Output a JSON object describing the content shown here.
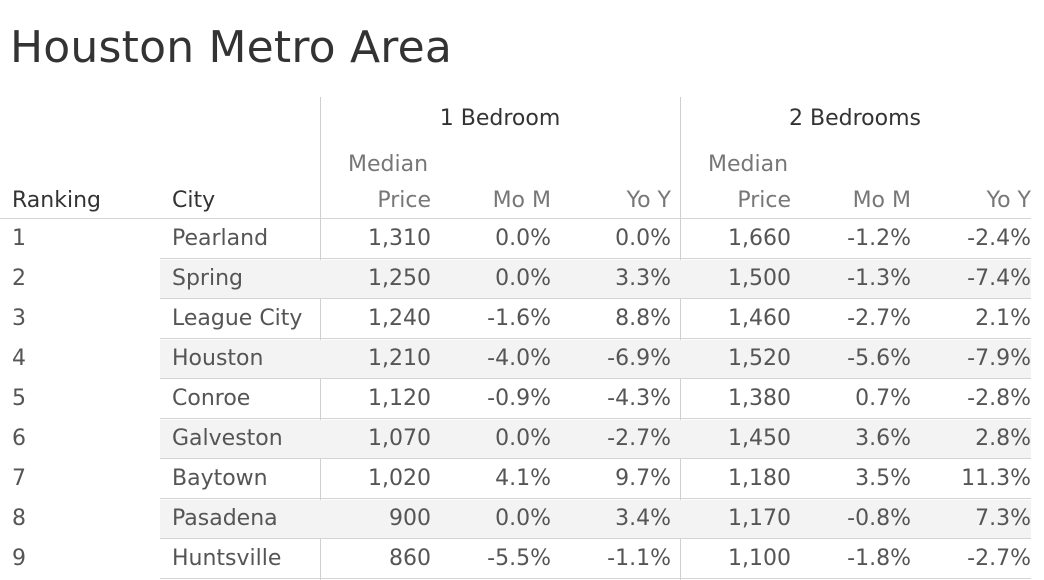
{
  "title": "Houston Metro Area",
  "groups": {
    "one_bed": "1 Bedroom",
    "two_bed": "2 Bedrooms"
  },
  "columns": {
    "ranking": "Ranking",
    "city": "City",
    "median_top": "Median",
    "median_bottom": "Price",
    "mom": "Mo M",
    "yoy": "Yo Y"
  },
  "chart_data": {
    "type": "table",
    "title": "Houston Metro Area",
    "column_groups": [
      "1 Bedroom",
      "2 Bedrooms"
    ],
    "columns": [
      "Ranking",
      "City",
      "Median Price",
      "Mo M",
      "Yo Y",
      "Median Price",
      "Mo M",
      "Yo Y"
    ],
    "rows": [
      {
        "rank": "1",
        "city": "Pearland",
        "b1_price": "1,310",
        "b1_mom": "0.0%",
        "b1_yoy": "0.0%",
        "b2_price": "1,660",
        "b2_mom": "-1.2%",
        "b2_yoy": "-2.4%"
      },
      {
        "rank": "2",
        "city": "Spring",
        "b1_price": "1,250",
        "b1_mom": "0.0%",
        "b1_yoy": "3.3%",
        "b2_price": "1,500",
        "b2_mom": "-1.3%",
        "b2_yoy": "-7.4%"
      },
      {
        "rank": "3",
        "city": "League City",
        "b1_price": "1,240",
        "b1_mom": "-1.6%",
        "b1_yoy": "8.8%",
        "b2_price": "1,460",
        "b2_mom": "-2.7%",
        "b2_yoy": "2.1%"
      },
      {
        "rank": "4",
        "city": "Houston",
        "b1_price": "1,210",
        "b1_mom": "-4.0%",
        "b1_yoy": "-6.9%",
        "b2_price": "1,520",
        "b2_mom": "-5.6%",
        "b2_yoy": "-7.9%"
      },
      {
        "rank": "5",
        "city": "Conroe",
        "b1_price": "1,120",
        "b1_mom": "-0.9%",
        "b1_yoy": "-4.3%",
        "b2_price": "1,380",
        "b2_mom": "0.7%",
        "b2_yoy": "-2.8%"
      },
      {
        "rank": "6",
        "city": "Galveston",
        "b1_price": "1,070",
        "b1_mom": "0.0%",
        "b1_yoy": "-2.7%",
        "b2_price": "1,450",
        "b2_mom": "3.6%",
        "b2_yoy": "2.8%"
      },
      {
        "rank": "7",
        "city": "Baytown",
        "b1_price": "1,020",
        "b1_mom": "4.1%",
        "b1_yoy": "9.7%",
        "b2_price": "1,180",
        "b2_mom": "3.5%",
        "b2_yoy": "11.3%"
      },
      {
        "rank": "8",
        "city": "Pasadena",
        "b1_price": "900",
        "b1_mom": "0.0%",
        "b1_yoy": "3.4%",
        "b2_price": "1,170",
        "b2_mom": "-0.8%",
        "b2_yoy": "7.3%"
      },
      {
        "rank": "9",
        "city": "Huntsville",
        "b1_price": "860",
        "b1_mom": "-5.5%",
        "b1_yoy": "-1.1%",
        "b2_price": "1,100",
        "b2_mom": "-1.8%",
        "b2_yoy": "-2.7%"
      }
    ]
  }
}
